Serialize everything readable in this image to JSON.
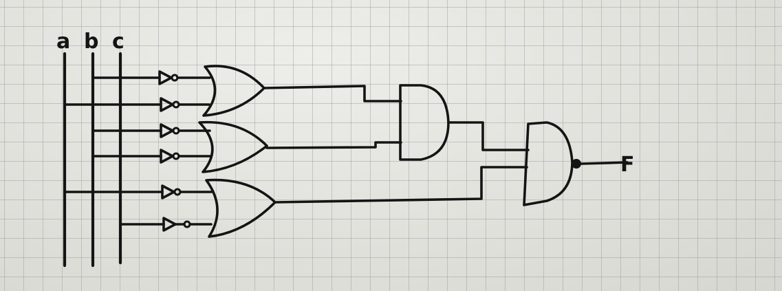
{
  "diagram": {
    "inputs": [
      {
        "id": "a",
        "label": "a"
      },
      {
        "id": "b",
        "label": "b"
      },
      {
        "id": "c",
        "label": "c"
      }
    ],
    "output": {
      "id": "F",
      "label": "F"
    },
    "gates": [
      {
        "id": "not1",
        "type": "NOT",
        "input": "b"
      },
      {
        "id": "not2",
        "type": "NOT",
        "input": "a"
      },
      {
        "id": "not3",
        "type": "NOT",
        "input": "b"
      },
      {
        "id": "not4",
        "type": "NOT",
        "input": "b"
      },
      {
        "id": "not5",
        "type": "NOT",
        "input": "a"
      },
      {
        "id": "not6",
        "type": "NOT",
        "input": "c"
      },
      {
        "id": "or1",
        "type": "OR",
        "inputs": [
          "not1",
          "not2"
        ]
      },
      {
        "id": "or2",
        "type": "OR",
        "inputs": [
          "not3",
          "not4"
        ]
      },
      {
        "id": "or3",
        "type": "OR",
        "inputs": [
          "not5",
          "not6"
        ]
      },
      {
        "id": "and1",
        "type": "AND",
        "inputs": [
          "or1",
          "or2"
        ]
      },
      {
        "id": "nand1",
        "type": "NAND",
        "inputs": [
          "and1",
          "or3"
        ],
        "output": "F"
      }
    ]
  }
}
